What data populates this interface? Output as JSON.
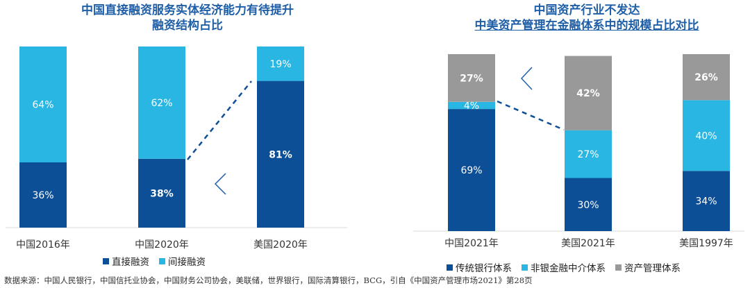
{
  "colors": {
    "dark": "#0d4f96",
    "light": "#29b6e3",
    "gray": "#999999",
    "title": "#1f5fa8"
  },
  "left": {
    "title_line1": "中国直接融资服务实体经济能力有待提升",
    "title_line2": "融资结构占比",
    "legend": [
      "直接融资",
      "间接融资"
    ]
  },
  "right": {
    "title_line1": "中国资产行业不发达",
    "title_line2": "中美资产管理在金融体系中的规模占比对比",
    "legend": [
      "传统银行体系",
      "非银金融中介体系",
      "资产管理体系"
    ]
  },
  "source": "数据来源：中国人民银行，中国信托业协会，中国财务公司协会，美联储，世界银行，国际清算银行，BCG，引自《中国资产管理市场2021》第28页",
  "chart_data": [
    {
      "type": "bar",
      "stacked": true,
      "title": "中国直接融资服务实体经济能力有待提升 融资结构占比",
      "categories": [
        "中国2016年",
        "中国2020年",
        "美国2020年"
      ],
      "series": [
        {
          "name": "直接融资",
          "values": [
            36,
            38,
            81
          ],
          "labels": [
            "36%",
            "38%",
            "81%"
          ],
          "bold": [
            false,
            true,
            true
          ]
        },
        {
          "name": "间接融资",
          "values": [
            64,
            62,
            19
          ],
          "labels": [
            "64%",
            "62%",
            "19%"
          ],
          "bold": [
            false,
            false,
            false
          ]
        }
      ],
      "ylim": [
        0,
        100
      ]
    },
    {
      "type": "bar",
      "stacked": true,
      "title": "中国资产行业不发达 中美资产管理在金融体系中的规模占比对比",
      "categories": [
        "中国2021年",
        "美国2021年",
        "美国1997年"
      ],
      "series": [
        {
          "name": "传统银行体系",
          "values": [
            69,
            30,
            34
          ],
          "labels": [
            "69%",
            "30%",
            "34%"
          ],
          "bold": [
            false,
            false,
            false
          ]
        },
        {
          "name": "非银金融中介体系",
          "values": [
            4,
            27,
            40
          ],
          "labels": [
            "4%",
            "27%",
            "40%"
          ],
          "bold": [
            false,
            false,
            false
          ]
        },
        {
          "name": "资产管理体系",
          "values": [
            27,
            42,
            26
          ],
          "labels": [
            "27%",
            "42%",
            "26%"
          ],
          "bold": [
            true,
            true,
            true
          ]
        }
      ],
      "ylim": [
        0,
        100
      ]
    }
  ]
}
